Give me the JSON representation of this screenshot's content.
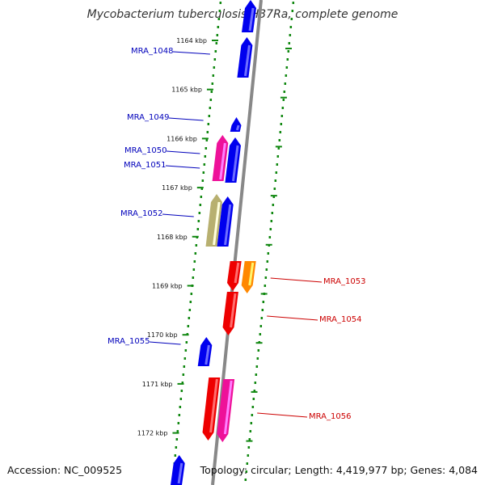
{
  "title": "Mycobacterium tuberculosis H37Ra, complete genome",
  "footer": {
    "accession": "Accession: NC_009525",
    "summary": "Topology: circular; Length: 4,419,977 bp; Genes: 4,084"
  },
  "colors": {
    "blue": "#0000ee",
    "red": "#ee0000",
    "pink": "#ee1199",
    "orange": "#ff8800",
    "olive": "#b8b070",
    "tick_green": "#118811",
    "backbone": "#888888",
    "label_blue": "#0000bb",
    "label_red": "#cc0000"
  },
  "ticks": [
    {
      "label": "1164 kbp"
    },
    {
      "label": "1165 kbp"
    },
    {
      "label": "1166 kbp"
    },
    {
      "label": "1167 kbp"
    },
    {
      "label": "1168 kbp"
    },
    {
      "label": "1169 kbp"
    },
    {
      "label": "1170 kbp"
    },
    {
      "label": "1171 kbp"
    },
    {
      "label": "1172 kbp"
    }
  ],
  "genes": [
    {
      "label": "",
      "strand": "+",
      "color": "blue"
    },
    {
      "label": "MRA_1048",
      "strand": "+",
      "color": "blue"
    },
    {
      "label": "MRA_1049",
      "strand": "+",
      "color": "blue"
    },
    {
      "label": "MRA_1050",
      "strand": "+",
      "color": "pink"
    },
    {
      "label": "MRA_1051",
      "strand": "+",
      "color": "blue"
    },
    {
      "label": "MRA_1052",
      "strand": "+",
      "color": "olive"
    },
    {
      "label": "",
      "strand": "+",
      "color": "blue"
    },
    {
      "label": "MRA_1053",
      "strand": "-",
      "color": "orange"
    },
    {
      "label": "",
      "strand": "-",
      "color": "red"
    },
    {
      "label": "MRA_1054",
      "strand": "-",
      "color": "red"
    },
    {
      "label": "MRA_1055",
      "strand": "+",
      "color": "blue"
    },
    {
      "label": "",
      "strand": "-",
      "color": "red"
    },
    {
      "label": "MRA_1056",
      "strand": "-",
      "color": "pink"
    },
    {
      "label": "",
      "strand": "+",
      "color": "blue"
    }
  ]
}
